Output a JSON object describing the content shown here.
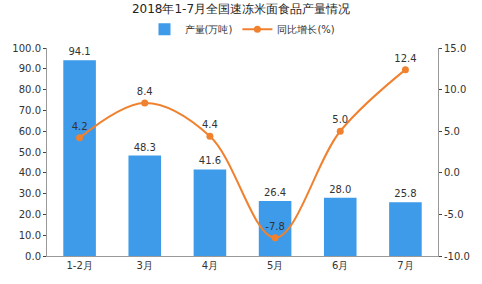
{
  "chart_data": {
    "type": "bar",
    "title": "2018年1-7月全国速冻米面食品产量情况",
    "categories": [
      "1-2月",
      "3月",
      "4月",
      "5月",
      "6月",
      "7月"
    ],
    "series": [
      {
        "name": "产量(万吨)",
        "type": "bar",
        "color": "#3d9be9",
        "values": [
          94.1,
          48.3,
          41.6,
          26.4,
          28.0,
          25.8
        ],
        "value_labels": [
          "94.1",
          "48.3",
          "41.6",
          "26.4",
          "28.0",
          "25.8"
        ]
      },
      {
        "name": "同比增长(%)",
        "type": "line",
        "axis": "y2",
        "color": "#f0812e",
        "marker": "circle",
        "line_style": "smooth",
        "values": [
          4.2,
          8.4,
          4.4,
          -7.8,
          5.0,
          12.4
        ],
        "value_labels": [
          "4.2",
          "8.4",
          "4.4",
          "-7.8",
          "5.0",
          "12.4"
        ]
      }
    ],
    "ylim": [
      0,
      100
    ],
    "yticks": [
      {
        "value": 0,
        "label": "0.0"
      },
      {
        "value": 10,
        "label": "10.0"
      },
      {
        "value": 20,
        "label": "20.0"
      },
      {
        "value": 30,
        "label": "30.0"
      },
      {
        "value": 40,
        "label": "40.0"
      },
      {
        "value": 50,
        "label": "50.0"
      },
      {
        "value": 60,
        "label": "60.0"
      },
      {
        "value": 70,
        "label": "70.0"
      },
      {
        "value": 80,
        "label": "80.0"
      },
      {
        "value": 90,
        "label": "90.0"
      },
      {
        "value": 100,
        "label": "100.0"
      }
    ],
    "y2lim": [
      -10,
      15
    ],
    "y2ticks": [
      {
        "value": -10,
        "label": "-10.0"
      },
      {
        "value": -5,
        "label": "-5.0"
      },
      {
        "value": 0,
        "label": "0.0"
      },
      {
        "value": 5,
        "label": "5.0"
      },
      {
        "value": 10,
        "label": "10.0"
      },
      {
        "value": 15,
        "label": "15.0"
      }
    ],
    "grid": false,
    "legend": "top",
    "data_labels": true
  }
}
